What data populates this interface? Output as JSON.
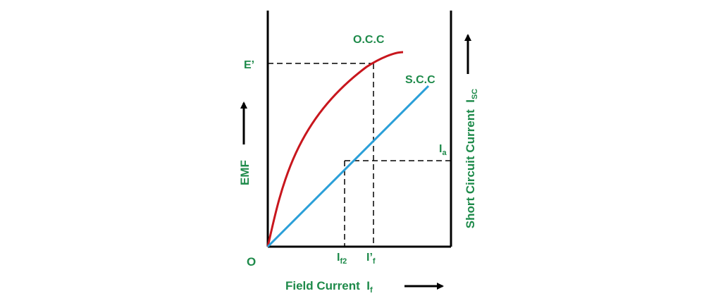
{
  "labels": {
    "occ": "O.C.C",
    "scc": "S.C.C",
    "e_prime": "E’",
    "origin": "O",
    "emf": "EMF",
    "ia_main": "I",
    "ia_sub": "a",
    "if2_main": "I",
    "if2_sub": "f2",
    "ifp_main": "I’",
    "ifp_sub": "f",
    "x_axis_main": "Field Current  I",
    "x_axis_sub": "f",
    "right_axis_main": "Short Circuit Current  I",
    "right_axis_sub": "SC"
  },
  "colors": {
    "label": "#1e8a4a",
    "occ_curve": "#c8161d",
    "scc_line": "#2a9fd8",
    "axis": "#000000"
  }
}
